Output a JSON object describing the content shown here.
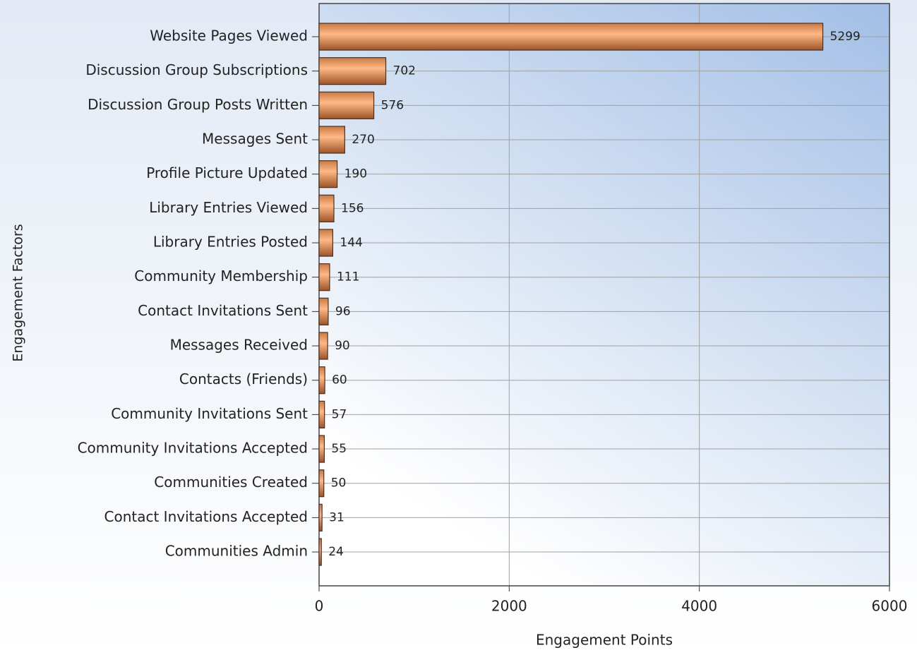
{
  "chart_data": {
    "type": "bar",
    "orientation": "horizontal",
    "x_label": "Engagement Points",
    "y_label": "Engagement Factors",
    "categories": [
      "Website Pages Viewed",
      "Discussion Group Subscriptions",
      "Discussion Group Posts Written",
      "Messages Sent",
      "Profile Picture Updated",
      "Library Entries Viewed",
      "Library Entries Posted",
      "Community Membership",
      "Contact Invitations Sent",
      "Messages Received",
      "Contacts (Friends)",
      "Community Invitations Sent",
      "Community Invitations Accepted",
      "Communities Created",
      "Contact Invitations Accepted",
      "Communities Admin"
    ],
    "values": [
      5299,
      702,
      576,
      270,
      190,
      156,
      144,
      111,
      96,
      90,
      60,
      57,
      55,
      50,
      31,
      24
    ],
    "color": "#f4a06a",
    "xlim": [
      0,
      6000
    ],
    "xticks": [
      0,
      2000,
      4000,
      6000
    ],
    "grid": true
  }
}
